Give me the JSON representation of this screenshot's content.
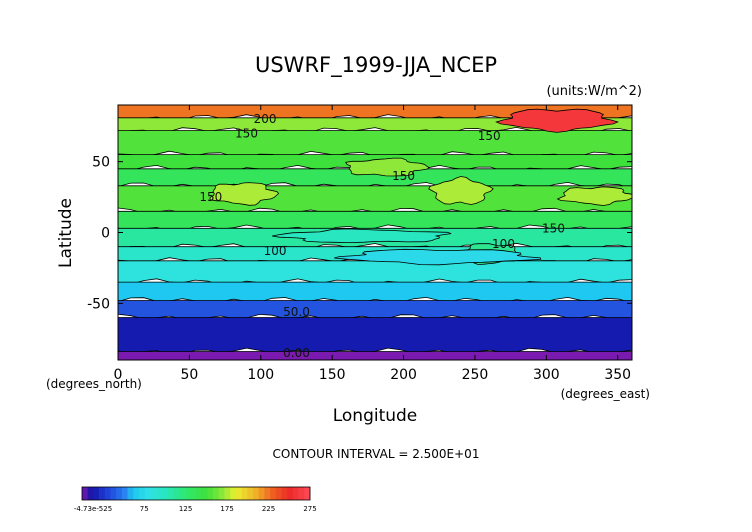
{
  "chart_data": {
    "type": "heatmap",
    "title": "USWRF_1999-JJA_NCEP",
    "units_label": "(units:W/m^2)",
    "xlabel": "Longitude",
    "ylabel": "Latitude",
    "x_unit_label": "(degrees_east)",
    "y_unit_label": "(degrees_north)",
    "xlim": [
      0,
      360
    ],
    "ylim": [
      -90,
      90
    ],
    "x_ticks": [
      0,
      50,
      100,
      150,
      200,
      250,
      300,
      350
    ],
    "y_ticks": [
      -50,
      0,
      50
    ],
    "contour_interval_text": "CONTOUR INTERVAL = 2.500E+01",
    "contour_labels": [
      {
        "text": "200",
        "lon": 103,
        "lat": 80
      },
      {
        "text": "150",
        "lon": 90,
        "lat": 70
      },
      {
        "text": "150",
        "lon": 260,
        "lat": 68
      },
      {
        "text": "150",
        "lon": 200,
        "lat": 40
      },
      {
        "text": "150",
        "lon": 65,
        "lat": 25
      },
      {
        "text": "150",
        "lon": 305,
        "lat": 3
      },
      {
        "text": "100",
        "lon": 110,
        "lat": -13
      },
      {
        "text": "100",
        "lon": 270,
        "lat": -8
      },
      {
        "text": "50.0",
        "lon": 125,
        "lat": -56
      },
      {
        "text": "0.00",
        "lon": 125,
        "lat": -85
      }
    ],
    "latitude_bands": [
      {
        "lat_from": 90,
        "lat_to": 81,
        "value": 225
      },
      {
        "lat_from": 81,
        "lat_to": 72,
        "value": 170
      },
      {
        "lat_from": 72,
        "lat_to": 55,
        "value": 155
      },
      {
        "lat_from": 55,
        "lat_to": 45,
        "value": 150
      },
      {
        "lat_from": 45,
        "lat_to": 33,
        "value": 135
      },
      {
        "lat_from": 33,
        "lat_to": 15,
        "value": 155
      },
      {
        "lat_from": 15,
        "lat_to": 3,
        "value": 135
      },
      {
        "lat_from": 3,
        "lat_to": -10,
        "value": 110
      },
      {
        "lat_from": -10,
        "lat_to": -20,
        "value": 95
      },
      {
        "lat_from": -20,
        "lat_to": -35,
        "value": 85
      },
      {
        "lat_from": -35,
        "lat_to": -48,
        "value": 62
      },
      {
        "lat_from": -48,
        "lat_to": -60,
        "value": 37
      },
      {
        "lat_from": -60,
        "lat_to": -84,
        "value": 15
      },
      {
        "lat_from": -84,
        "lat_to": -90,
        "value": 0
      }
    ],
    "patches": [
      {
        "lon_from": 270,
        "lon_to": 345,
        "lat_from": 72,
        "lat_to": 87,
        "value": 260
      },
      {
        "lon_from": 65,
        "lon_to": 110,
        "lat_from": 20,
        "lat_to": 35,
        "value": 175
      },
      {
        "lon_from": 160,
        "lon_to": 215,
        "lat_from": 40,
        "lat_to": 52,
        "value": 170
      },
      {
        "lon_from": 220,
        "lon_to": 260,
        "lat_from": 20,
        "lat_to": 38,
        "value": 175
      },
      {
        "lon_from": 115,
        "lon_to": 230,
        "lat_from": -7,
        "lat_to": 2,
        "value": 100
      },
      {
        "lon_from": 240,
        "lon_to": 280,
        "lat_from": -22,
        "lat_to": -8,
        "value": 115
      },
      {
        "lon_from": 160,
        "lon_to": 290,
        "lat_from": -22,
        "lat_to": -12,
        "value": 75
      },
      {
        "lon_from": 310,
        "lon_to": 360,
        "lat_from": 20,
        "lat_to": 32,
        "value": 175
      }
    ],
    "colorbar": {
      "min_label": "-4.73e-525",
      "tick_labels": [
        "75",
        "125",
        "175",
        "225",
        "275"
      ],
      "range": [
        0,
        275
      ]
    }
  }
}
